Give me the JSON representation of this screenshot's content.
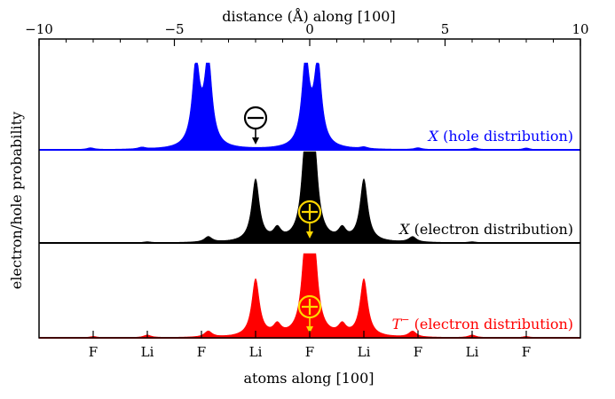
{
  "chart_data": {
    "type": "area",
    "title": "",
    "top_axis": {
      "label": "distance (Å) along [100]",
      "range": [
        -10,
        10
      ],
      "ticks": [
        -10,
        -5,
        0,
        5,
        10
      ],
      "tick_labels": [
        "−10",
        "−5",
        "0",
        "5",
        "10"
      ]
    },
    "bottom_axis": {
      "label": "atoms along [100]",
      "ticks": [
        -8,
        -6,
        -4,
        -2,
        0,
        2,
        4,
        6,
        8
      ],
      "tick_labels": [
        "F",
        "Li",
        "F",
        "Li",
        "F",
        "Li",
        "F",
        "Li",
        "F"
      ]
    },
    "ylabel": "electron/hole probability",
    "grid": false,
    "series": [
      {
        "name": "X (hole distribution)",
        "label_prefix": "X",
        "label_suffix": " (hole distribution)",
        "color": "#0000ff",
        "peaks": [
          {
            "x": -4.2,
            "height": 0.95
          },
          {
            "x": -3.75,
            "height": 1.0
          },
          {
            "x": -0.15,
            "height": 1.0
          },
          {
            "x": 0.3,
            "height": 0.95
          },
          {
            "x": -8.1,
            "height": 0.02
          },
          {
            "x": -6.2,
            "height": 0.02
          },
          {
            "x": 2.0,
            "height": 0.02
          },
          {
            "x": 4.0,
            "height": 0.02
          },
          {
            "x": 6.1,
            "height": 0.02
          },
          {
            "x": 8.0,
            "height": 0.02
          }
        ],
        "charge_marker": {
          "symbol": "minus",
          "x": -2.0
        }
      },
      {
        "name": "X (electron distribution)",
        "label_prefix": "X",
        "label_suffix": " (electron distribution)",
        "color": "#000000",
        "peaks": [
          {
            "x": -2.0,
            "height": 0.68
          },
          {
            "x": -1.2,
            "height": 0.12
          },
          {
            "x": -0.15,
            "height": 1.0
          },
          {
            "x": 0.15,
            "height": 1.0
          },
          {
            "x": 1.2,
            "height": 0.12
          },
          {
            "x": 2.0,
            "height": 0.68
          },
          {
            "x": -3.75,
            "height": 0.06
          },
          {
            "x": 3.8,
            "height": 0.06
          },
          {
            "x": -6.0,
            "height": 0.01
          },
          {
            "x": 6.0,
            "height": 0.01
          }
        ],
        "charge_marker": {
          "symbol": "plus",
          "x": 0.0
        }
      },
      {
        "name": "T− (electron distribution)",
        "label_prefix": "T",
        "label_sup": "−",
        "label_suffix": " (electron distribution)",
        "color": "#ff0000",
        "peaks": [
          {
            "x": -2.0,
            "height": 0.68
          },
          {
            "x": -1.2,
            "height": 0.12
          },
          {
            "x": -0.15,
            "height": 1.0
          },
          {
            "x": 0.15,
            "height": 1.0
          },
          {
            "x": 1.2,
            "height": 0.12
          },
          {
            "x": 2.0,
            "height": 0.68
          },
          {
            "x": -3.75,
            "height": 0.07
          },
          {
            "x": 3.8,
            "height": 0.07
          },
          {
            "x": -6.0,
            "height": 0.03
          },
          {
            "x": 6.0,
            "height": 0.03
          },
          {
            "x": -8.0,
            "height": 0.015
          },
          {
            "x": 8.0,
            "height": 0.015
          }
        ],
        "charge_marker": {
          "symbol": "plus",
          "x": 0.0
        }
      }
    ]
  }
}
